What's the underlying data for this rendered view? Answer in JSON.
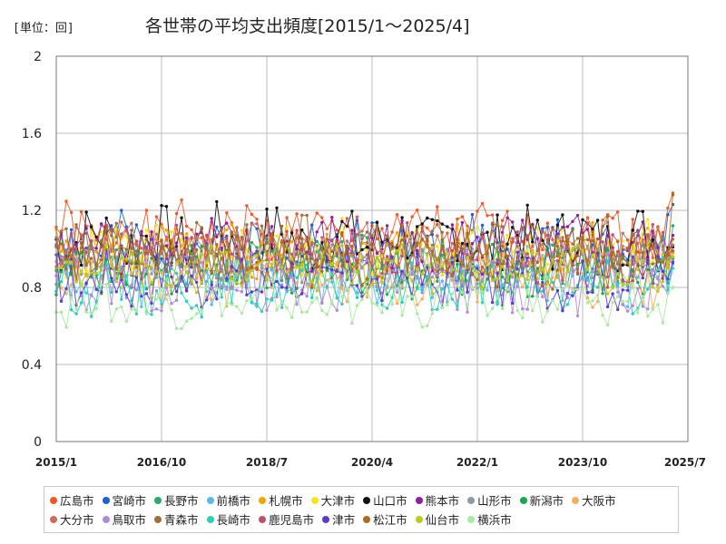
{
  "unit_label": "[単位：回]",
  "chart_data": {
    "type": "line",
    "title": "各世帯の平均支出頻度[2015/1～2025/4]",
    "xlabel": "",
    "ylabel": "",
    "ylim": [
      0,
      2
    ],
    "y_ticks": [
      "0",
      "0.4",
      "0.8",
      "1.2",
      "1.6",
      "2"
    ],
    "y_tick_values": [
      0,
      0.4,
      0.8,
      1.2,
      1.6,
      2
    ],
    "x_range_months": [
      0,
      126
    ],
    "x_ticks": [
      "2015/1",
      "2016/10",
      "2018/7",
      "2020/4",
      "2022/1",
      "2023/10",
      "2025/7"
    ],
    "x_tick_months": [
      0,
      21,
      42,
      63,
      84,
      105,
      126
    ],
    "grid": true,
    "legend_position": "bottom",
    "series": [
      {
        "name": "広島市",
        "color": "#f05a28",
        "base": 1.08,
        "amp": 0.14,
        "seed": 1,
        "last": 1.29
      },
      {
        "name": "宮崎市",
        "color": "#1c5fd8",
        "base": 1.02,
        "amp": 0.14,
        "seed": 2,
        "last": 1.23
      },
      {
        "name": "長野市",
        "color": "#2aa876",
        "base": 0.92,
        "amp": 0.13,
        "seed": 3,
        "last": 1.12
      },
      {
        "name": "前橋市",
        "color": "#5bb8e8",
        "base": 0.86,
        "amp": 0.13,
        "seed": 4,
        "last": 0.95
      },
      {
        "name": "札幌市",
        "color": "#f0a500",
        "base": 0.98,
        "amp": 0.13,
        "seed": 5,
        "last": 0.98
      },
      {
        "name": "大津市",
        "color": "#f5e61c",
        "base": 1.0,
        "amp": 0.12,
        "seed": 6,
        "last": 1.02
      },
      {
        "name": "山口市",
        "color": "#111111",
        "base": 1.05,
        "amp": 0.16,
        "seed": 7,
        "last": 1.01
      },
      {
        "name": "熊本市",
        "color": "#8e1fa0",
        "base": 1.0,
        "amp": 0.15,
        "seed": 8,
        "last": 1.07
      },
      {
        "name": "山形市",
        "color": "#909aa0",
        "base": 0.92,
        "amp": 0.12,
        "seed": 9,
        "last": 0.92
      },
      {
        "name": "新潟市",
        "color": "#1aa64a",
        "base": 0.9,
        "amp": 0.12,
        "seed": 10,
        "last": 0.95
      },
      {
        "name": "大阪市",
        "color": "#f0b060",
        "base": 0.85,
        "amp": 0.13,
        "seed": 11,
        "last": 0.96
      },
      {
        "name": "大分市",
        "color": "#d06a5a",
        "base": 1.0,
        "amp": 0.12,
        "seed": 12,
        "last": 1.02
      },
      {
        "name": "鳥取市",
        "color": "#b08ad8",
        "base": 0.82,
        "amp": 0.13,
        "seed": 13,
        "last": 0.94
      },
      {
        "name": "青森市",
        "color": "#a0703a",
        "base": 1.0,
        "amp": 0.14,
        "seed": 14,
        "last": 1.05
      },
      {
        "name": "長崎市",
        "color": "#2ad0b8",
        "base": 0.8,
        "amp": 0.12,
        "seed": 15,
        "last": 0.9
      },
      {
        "name": "鹿児島市",
        "color": "#c05068",
        "base": 0.98,
        "amp": 0.13,
        "seed": 16,
        "last": 0.99
      },
      {
        "name": "津市",
        "color": "#5a3ad0",
        "base": 0.84,
        "amp": 0.13,
        "seed": 17,
        "last": 0.93
      },
      {
        "name": "松江市",
        "color": "#b06a1a",
        "base": 0.95,
        "amp": 0.13,
        "seed": 18,
        "last": 1.28
      },
      {
        "name": "仙台市",
        "color": "#c0c818",
        "base": 0.9,
        "amp": 0.11,
        "seed": 19,
        "last": 0.96
      },
      {
        "name": "横浜市",
        "color": "#a8eaa0",
        "base": 0.72,
        "amp": 0.1,
        "seed": 20,
        "last": 0.8
      }
    ]
  }
}
